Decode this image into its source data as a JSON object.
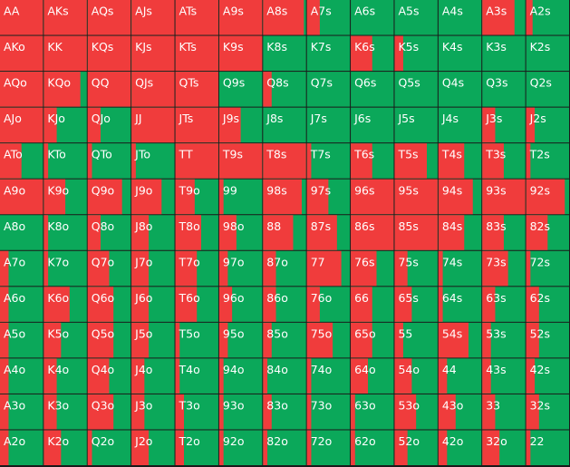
{
  "grid": {
    "colors": {
      "raise": "#f03c3c",
      "call": "#0ba85a",
      "border": "#1a1a1a",
      "text": "#ffffff"
    },
    "hands": [
      [
        "AA",
        "AKs",
        "AQs",
        "AJs",
        "ATs",
        "A9s",
        "A8s",
        "A7s",
        "A6s",
        "A5s",
        "A4s",
        "A3s",
        "A2s"
      ],
      [
        "AKo",
        "KK",
        "KQs",
        "KJs",
        "KTs",
        "K9s",
        "K8s",
        "K7s",
        "K6s",
        "K5s",
        "K4s",
        "K3s",
        "K2s"
      ],
      [
        "AQo",
        "KQo",
        "QQ",
        "QJs",
        "QTs",
        "Q9s",
        "Q8s",
        "Q7s",
        "Q6s",
        "Q5s",
        "Q4s",
        "Q3s",
        "Q2s"
      ],
      [
        "AJo",
        "KJo",
        "QJo",
        "JJ",
        "JTs",
        "J9s",
        "J8s",
        "J7s",
        "J6s",
        "J5s",
        "J4s",
        "J3s",
        "J2s"
      ],
      [
        "ATo",
        "KTo",
        "QTo",
        "JTo",
        "TT",
        "T9s",
        "T8s",
        "T7s",
        "T6s",
        "T5s",
        "T4s",
        "T3s",
        "T2s"
      ],
      [
        "A9o",
        "K9o",
        "Q9o",
        "J9o",
        "T9o",
        "99",
        "98s",
        "97s",
        "96s",
        "95s",
        "94s",
        "93s",
        "92s"
      ],
      [
        "A8o",
        "K8o",
        "Q8o",
        "J8o",
        "T8o",
        "98o",
        "88",
        "87s",
        "86s",
        "85s",
        "84s",
        "83s",
        "82s"
      ],
      [
        "A7o",
        "K7o",
        "Q7o",
        "J7o",
        "T7o",
        "97o",
        "87o",
        "77",
        "76s",
        "75s",
        "74s",
        "73s",
        "72s"
      ],
      [
        "A6o",
        "K6o",
        "Q6o",
        "J6o",
        "T6o",
        "96o",
        "86o",
        "76o",
        "66",
        "65s",
        "64s",
        "63s",
        "62s"
      ],
      [
        "A5o",
        "K5o",
        "Q5o",
        "J5o",
        "T5o",
        "95o",
        "85o",
        "75o",
        "65o",
        "55",
        "54s",
        "53s",
        "52s"
      ],
      [
        "A4o",
        "K4o",
        "Q4o",
        "J4o",
        "T4o",
        "94o",
        "84o",
        "74o",
        "64o",
        "54o",
        "44",
        "43s",
        "42s"
      ],
      [
        "A3o",
        "K3o",
        "Q3o",
        "J3o",
        "T3o",
        "93o",
        "83o",
        "73o",
        "63o",
        "53o",
        "43o",
        "33",
        "32s"
      ],
      [
        "A2o",
        "K2o",
        "Q2o",
        "J2o",
        "T2o",
        "92o",
        "82o",
        "72o",
        "62o",
        "52o",
        "42o",
        "32o",
        "22"
      ]
    ],
    "raise_fraction": [
      [
        1,
        1,
        1,
        1,
        1,
        1,
        0.95,
        0.3,
        0,
        0,
        0,
        0.75,
        0.15
      ],
      [
        1,
        1,
        1,
        1,
        1,
        1,
        0,
        0,
        0.5,
        0.2,
        0,
        0,
        0
      ],
      [
        1,
        0.85,
        1,
        1,
        1,
        0,
        0.2,
        0,
        0,
        0,
        0,
        0,
        0
      ],
      [
        1,
        0.3,
        0.3,
        1,
        1,
        0.5,
        0,
        0,
        0,
        0,
        0,
        0.3,
        0.2
      ],
      [
        0.5,
        0.1,
        0.1,
        0.1,
        1,
        1,
        1,
        0.1,
        0.5,
        0.75,
        0.6,
        0.5,
        0.1
      ],
      [
        1,
        0.5,
        0.8,
        0.7,
        0.45,
        0.1,
        0.9,
        0.5,
        1,
        1,
        0.8,
        1,
        0.9
      ],
      [
        0,
        0.1,
        0.3,
        0.4,
        0.6,
        0.4,
        0.7,
        0.7,
        1,
        1,
        0.6,
        0.5,
        0.5
      ],
      [
        0.2,
        0.1,
        0.5,
        0.4,
        0.5,
        0.2,
        0.3,
        0.8,
        0.6,
        0.3,
        0.1,
        0.6,
        0.1
      ],
      [
        0.2,
        0.6,
        0.6,
        0.4,
        0.5,
        0.3,
        0.3,
        0.3,
        0.5,
        0.4,
        0.1,
        0.3,
        0.3
      ],
      [
        0.2,
        0.4,
        0.6,
        0.4,
        0.1,
        0.2,
        0.2,
        0.6,
        0.5,
        0.2,
        0.7,
        0.2,
        0.3
      ],
      [
        0.2,
        0.3,
        0.5,
        0.3,
        0.1,
        0.1,
        0.1,
        0.1,
        0.4,
        0.4,
        0.2,
        0.2,
        0.2
      ],
      [
        0.2,
        0.3,
        0.6,
        0.3,
        0.2,
        0.1,
        0.2,
        0.1,
        0.1,
        0.5,
        0.4,
        0.3,
        0.3
      ],
      [
        0.2,
        0.4,
        0.1,
        0.4,
        0.2,
        0.1,
        0.1,
        0.1,
        0.1,
        0.3,
        0.2,
        0.4,
        0.1
      ]
    ]
  }
}
